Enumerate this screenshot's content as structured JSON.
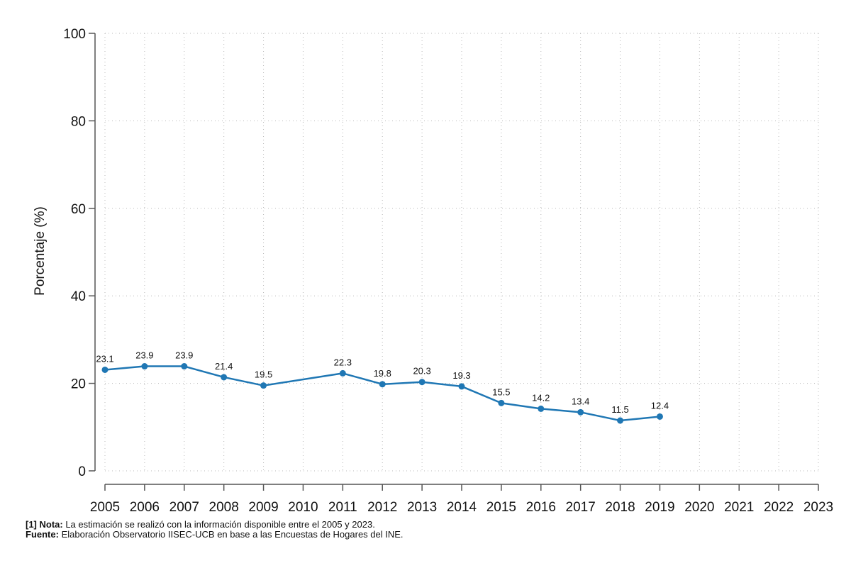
{
  "chart_data": {
    "type": "line",
    "title": "",
    "xlabel": "",
    "ylabel": "Porcentaje (%)",
    "ylim": [
      0,
      100
    ],
    "yticks": [
      "0",
      "20",
      "40",
      "60",
      "80",
      "100"
    ],
    "categories": [
      "2005",
      "2006",
      "2007",
      "2008",
      "2009",
      "2010",
      "2011",
      "2012",
      "2013",
      "2014",
      "2015",
      "2016",
      "2017",
      "2018",
      "2019",
      "2020",
      "2021",
      "2022",
      "2023"
    ],
    "series": [
      {
        "name": "Porcentaje",
        "color": "#1f77b4",
        "points": [
          {
            "x": "2005",
            "y": 23.1,
            "label": "23.1"
          },
          {
            "x": "2006",
            "y": 23.9,
            "label": "23.9"
          },
          {
            "x": "2007",
            "y": 23.9,
            "label": "23.9"
          },
          {
            "x": "2008",
            "y": 21.4,
            "label": "21.4"
          },
          {
            "x": "2009",
            "y": 19.5,
            "label": "19.5"
          },
          {
            "x": "2011",
            "y": 22.3,
            "label": "22.3"
          },
          {
            "x": "2012",
            "y": 19.8,
            "label": "19.8"
          },
          {
            "x": "2013",
            "y": 20.3,
            "label": "20.3"
          },
          {
            "x": "2014",
            "y": 19.3,
            "label": "19.3"
          },
          {
            "x": "2015",
            "y": 15.5,
            "label": "15.5"
          },
          {
            "x": "2016",
            "y": 14.2,
            "label": "14.2"
          },
          {
            "x": "2017",
            "y": 13.4,
            "label": "13.4"
          },
          {
            "x": "2018",
            "y": 11.5,
            "label": "11.5"
          },
          {
            "x": "2019",
            "y": 12.4,
            "label": "12.4"
          }
        ]
      }
    ],
    "grid": true
  },
  "footnote": {
    "note_label": "[1] Nota:",
    "note_text": " La estimación se realizó con la información disponible entre el 2005 y 2023.",
    "source_label": "Fuente:",
    "source_text": " Elaboración Observatorio IISEC-UCB en base a las Encuestas de Hogares del INE."
  }
}
